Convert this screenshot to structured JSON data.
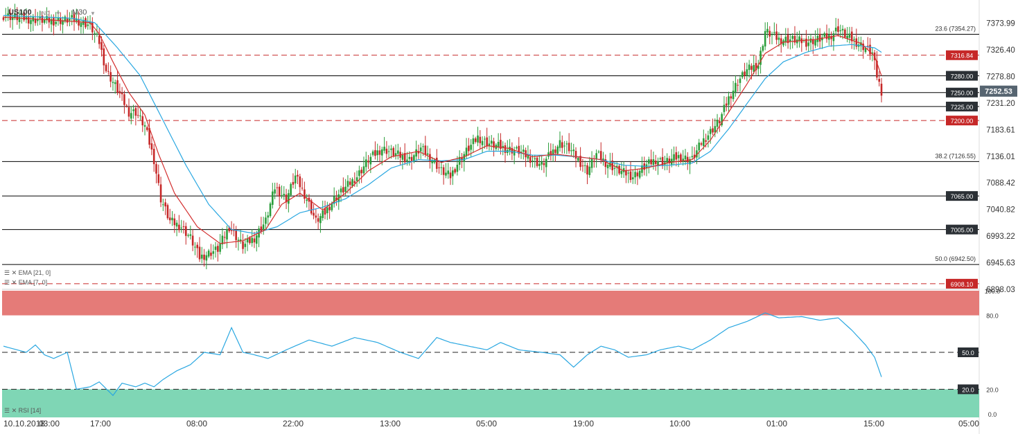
{
  "header": {
    "symbol": "US100",
    "instrument_type": "IND",
    "timeframe": "M30"
  },
  "indicators": {
    "ema_slow": "EMA [21, 0]",
    "ema_fast": "EMA [7, 0]",
    "rsi": "RSI [14]"
  },
  "colors": {
    "bull": "#2a9d3a",
    "bear": "#c62828",
    "ema_fast": "#d32f2f",
    "ema_slow": "#29a7e1",
    "rsi_line": "#29a7e1",
    "overbought_zone": "#e57b78",
    "oversold_zone": "#7fd6b5",
    "level_line": "#000000",
    "dashed_level": "#c62828",
    "label_dark": "#2b3035",
    "label_red": "#c62828"
  },
  "chart_data": [
    {
      "type": "candlestick",
      "title": "US100 M30",
      "ylim": [
        6898.03,
        7397.0
      ],
      "y_ticks": [
        "7373.99",
        "7326.40",
        "7278.80",
        "7231.20",
        "7183.61",
        "7136.01",
        "7088.42",
        "7040.82",
        "6993.22",
        "6945.63",
        "6898.03"
      ],
      "x_ticks": [
        "10.10.2018",
        "03:00",
        "17:00",
        "08:00",
        "22:00",
        "13:00",
        "05:00",
        "19:00",
        "10:00",
        "01:00",
        "15:00",
        "05:00"
      ],
      "current_price": "7252.53",
      "horizontal_levels": [
        {
          "label": "23.6 (7354.27)",
          "value": 7354.27,
          "style": "fib"
        },
        {
          "label": "7316.84",
          "value": 7316.84,
          "style": "dashed"
        },
        {
          "label": "7280.00",
          "value": 7280.0,
          "style": "solid"
        },
        {
          "label": "7250.00",
          "value": 7250.0,
          "style": "solid"
        },
        {
          "label": "7225.00",
          "value": 7225.0,
          "style": "solid"
        },
        {
          "label": "7200.00",
          "value": 7200.0,
          "style": "dashed"
        },
        {
          "label": "38.2 (7126.55)",
          "value": 7126.55,
          "style": "fib"
        },
        {
          "label": "7065.00",
          "value": 7065.0,
          "style": "solid"
        },
        {
          "label": "7005.00",
          "value": 7005.0,
          "style": "solid"
        },
        {
          "label": "50.0 (6942.50)",
          "value": 6942.5,
          "style": "fib"
        },
        {
          "label": "6908.10",
          "value": 6908.1,
          "style": "dashed"
        }
      ],
      "close_keypoints": [
        [
          0,
          7388
        ],
        [
          10,
          7382
        ],
        [
          22,
          7378
        ],
        [
          31,
          7381
        ],
        [
          38,
          7370
        ],
        [
          42,
          7340
        ],
        [
          45,
          7290
        ],
        [
          50,
          7255
        ],
        [
          55,
          7215
        ],
        [
          58,
          7215
        ],
        [
          62,
          7190
        ],
        [
          66,
          7130
        ],
        [
          69,
          7060
        ],
        [
          73,
          7020
        ],
        [
          78,
          7010
        ],
        [
          82,
          6990
        ],
        [
          86,
          6955
        ],
        [
          94,
          6970
        ],
        [
          99,
          7010
        ],
        [
          105,
          6975
        ],
        [
          110,
          6990
        ],
        [
          115,
          7020
        ],
        [
          119,
          7080
        ],
        [
          124,
          7060
        ],
        [
          128,
          7100
        ],
        [
          133,
          7060
        ],
        [
          137,
          7020
        ],
        [
          141,
          7035
        ],
        [
          145,
          7060
        ],
        [
          150,
          7080
        ],
        [
          155,
          7100
        ],
        [
          160,
          7130
        ],
        [
          166,
          7150
        ],
        [
          172,
          7140
        ],
        [
          178,
          7130
        ],
        [
          183,
          7150
        ],
        [
          188,
          7130
        ],
        [
          192,
          7110
        ],
        [
          196,
          7100
        ],
        [
          200,
          7130
        ],
        [
          204,
          7150
        ],
        [
          208,
          7170
        ],
        [
          212,
          7160
        ],
        [
          216,
          7155
        ],
        [
          220,
          7150
        ],
        [
          226,
          7145
        ],
        [
          232,
          7130
        ],
        [
          236,
          7120
        ],
        [
          240,
          7140
        ],
        [
          244,
          7160
        ],
        [
          248,
          7150
        ],
        [
          252,
          7130
        ],
        [
          256,
          7110
        ],
        [
          260,
          7140
        ],
        [
          264,
          7125
        ],
        [
          270,
          7110
        ],
        [
          276,
          7100
        ],
        [
          282,
          7120
        ],
        [
          286,
          7130
        ],
        [
          290,
          7125
        ],
        [
          296,
          7135
        ],
        [
          302,
          7130
        ],
        [
          306,
          7160
        ],
        [
          310,
          7180
        ],
        [
          314,
          7200
        ],
        [
          318,
          7240
        ],
        [
          322,
          7270
        ],
        [
          326,
          7290
        ],
        [
          331,
          7300
        ],
        [
          334,
          7360
        ],
        [
          340,
          7345
        ],
        [
          346,
          7345
        ],
        [
          352,
          7340
        ],
        [
          357,
          7345
        ],
        [
          362,
          7350
        ],
        [
          366,
          7365
        ],
        [
          370,
          7350
        ],
        [
          374,
          7340
        ],
        [
          378,
          7330
        ],
        [
          381,
          7320
        ],
        [
          383,
          7280
        ],
        [
          385,
          7252.53
        ]
      ],
      "ema7_keypoints": [
        [
          0,
          7385
        ],
        [
          20,
          7380
        ],
        [
          38,
          7375
        ],
        [
          42,
          7355
        ],
        [
          48,
          7305
        ],
        [
          55,
          7250
        ],
        [
          62,
          7210
        ],
        [
          68,
          7140
        ],
        [
          75,
          7070
        ],
        [
          85,
          7010
        ],
        [
          95,
          6980
        ],
        [
          105,
          6985
        ],
        [
          115,
          7005
        ],
        [
          122,
          7050
        ],
        [
          130,
          7070
        ],
        [
          140,
          7040
        ],
        [
          150,
          7070
        ],
        [
          160,
          7110
        ],
        [
          170,
          7135
        ],
        [
          182,
          7145
        ],
        [
          192,
          7125
        ],
        [
          202,
          7135
        ],
        [
          212,
          7155
        ],
        [
          222,
          7150
        ],
        [
          232,
          7135
        ],
        [
          242,
          7140
        ],
        [
          252,
          7135
        ],
        [
          262,
          7130
        ],
        [
          272,
          7110
        ],
        [
          282,
          7115
        ],
        [
          292,
          7125
        ],
        [
          302,
          7130
        ],
        [
          310,
          7165
        ],
        [
          318,
          7215
        ],
        [
          326,
          7265
        ],
        [
          334,
          7320
        ],
        [
          342,
          7340
        ],
        [
          356,
          7345
        ],
        [
          366,
          7352
        ],
        [
          376,
          7338
        ],
        [
          382,
          7315
        ],
        [
          385,
          7280
        ]
      ],
      "ema21_keypoints": [
        [
          0,
          7388
        ],
        [
          30,
          7383
        ],
        [
          40,
          7375
        ],
        [
          50,
          7330
        ],
        [
          60,
          7280
        ],
        [
          70,
          7200
        ],
        [
          80,
          7120
        ],
        [
          90,
          7050
        ],
        [
          100,
          7005
        ],
        [
          110,
          6998
        ],
        [
          120,
          7010
        ],
        [
          130,
          7035
        ],
        [
          140,
          7045
        ],
        [
          150,
          7060
        ],
        [
          160,
          7085
        ],
        [
          170,
          7115
        ],
        [
          182,
          7130
        ],
        [
          192,
          7128
        ],
        [
          202,
          7130
        ],
        [
          212,
          7145
        ],
        [
          222,
          7145
        ],
        [
          232,
          7138
        ],
        [
          242,
          7138
        ],
        [
          252,
          7135
        ],
        [
          262,
          7130
        ],
        [
          272,
          7120
        ],
        [
          282,
          7118
        ],
        [
          292,
          7120
        ],
        [
          302,
          7124
        ],
        [
          310,
          7145
        ],
        [
          318,
          7185
        ],
        [
          326,
          7230
        ],
        [
          334,
          7275
        ],
        [
          342,
          7305
        ],
        [
          352,
          7322
        ],
        [
          362,
          7333
        ],
        [
          372,
          7336
        ],
        [
          382,
          7330
        ],
        [
          385,
          7322
        ]
      ],
      "x_range_bars": [
        0,
        385
      ]
    },
    {
      "type": "line",
      "title": "RSI [14]",
      "ylim": [
        0.0,
        100.0
      ],
      "y_ticks": [
        "100.0",
        "80.0",
        "20.0",
        "0.0"
      ],
      "levels": [
        {
          "label": "50.0",
          "value": 50.0
        },
        {
          "label": "20.0",
          "value": 20.0
        }
      ],
      "zones": [
        {
          "from": 80,
          "to": 100,
          "name": "overbought"
        },
        {
          "from": 0,
          "to": 20,
          "name": "oversold"
        }
      ],
      "series": [
        {
          "values_keypoints": [
            [
              0,
              55
            ],
            [
              10,
              50
            ],
            [
              14,
              56
            ],
            [
              18,
              48
            ],
            [
              22,
              45
            ],
            [
              28,
              50
            ],
            [
              32,
              20
            ],
            [
              38,
              22
            ],
            [
              42,
              26
            ],
            [
              48,
              15
            ],
            [
              52,
              25
            ],
            [
              58,
              22
            ],
            [
              62,
              25
            ],
            [
              66,
              22
            ],
            [
              70,
              28
            ],
            [
              76,
              35
            ],
            [
              82,
              40
            ],
            [
              88,
              50
            ],
            [
              95,
              48
            ],
            [
              100,
              70
            ],
            [
              105,
              50
            ],
            [
              110,
              48
            ],
            [
              116,
              45
            ],
            [
              124,
              52
            ],
            [
              134,
              60
            ],
            [
              144,
              55
            ],
            [
              154,
              62
            ],
            [
              164,
              58
            ],
            [
              174,
              50
            ],
            [
              182,
              45
            ],
            [
              190,
              62
            ],
            [
              196,
              58
            ],
            [
              204,
              55
            ],
            [
              212,
              52
            ],
            [
              218,
              58
            ],
            [
              226,
              52
            ],
            [
              236,
              50
            ],
            [
              244,
              48
            ],
            [
              250,
              38
            ],
            [
              256,
              48
            ],
            [
              262,
              55
            ],
            [
              268,
              52
            ],
            [
              274,
              46
            ],
            [
              282,
              48
            ],
            [
              288,
              52
            ],
            [
              296,
              55
            ],
            [
              302,
              52
            ],
            [
              310,
              60
            ],
            [
              318,
              70
            ],
            [
              326,
              75
            ],
            [
              334,
              82
            ],
            [
              340,
              78
            ],
            [
              350,
              79
            ],
            [
              358,
              76
            ],
            [
              366,
              78
            ],
            [
              372,
              68
            ],
            [
              378,
              56
            ],
            [
              382,
              46
            ],
            [
              385,
              30
            ]
          ]
        }
      ]
    }
  ]
}
